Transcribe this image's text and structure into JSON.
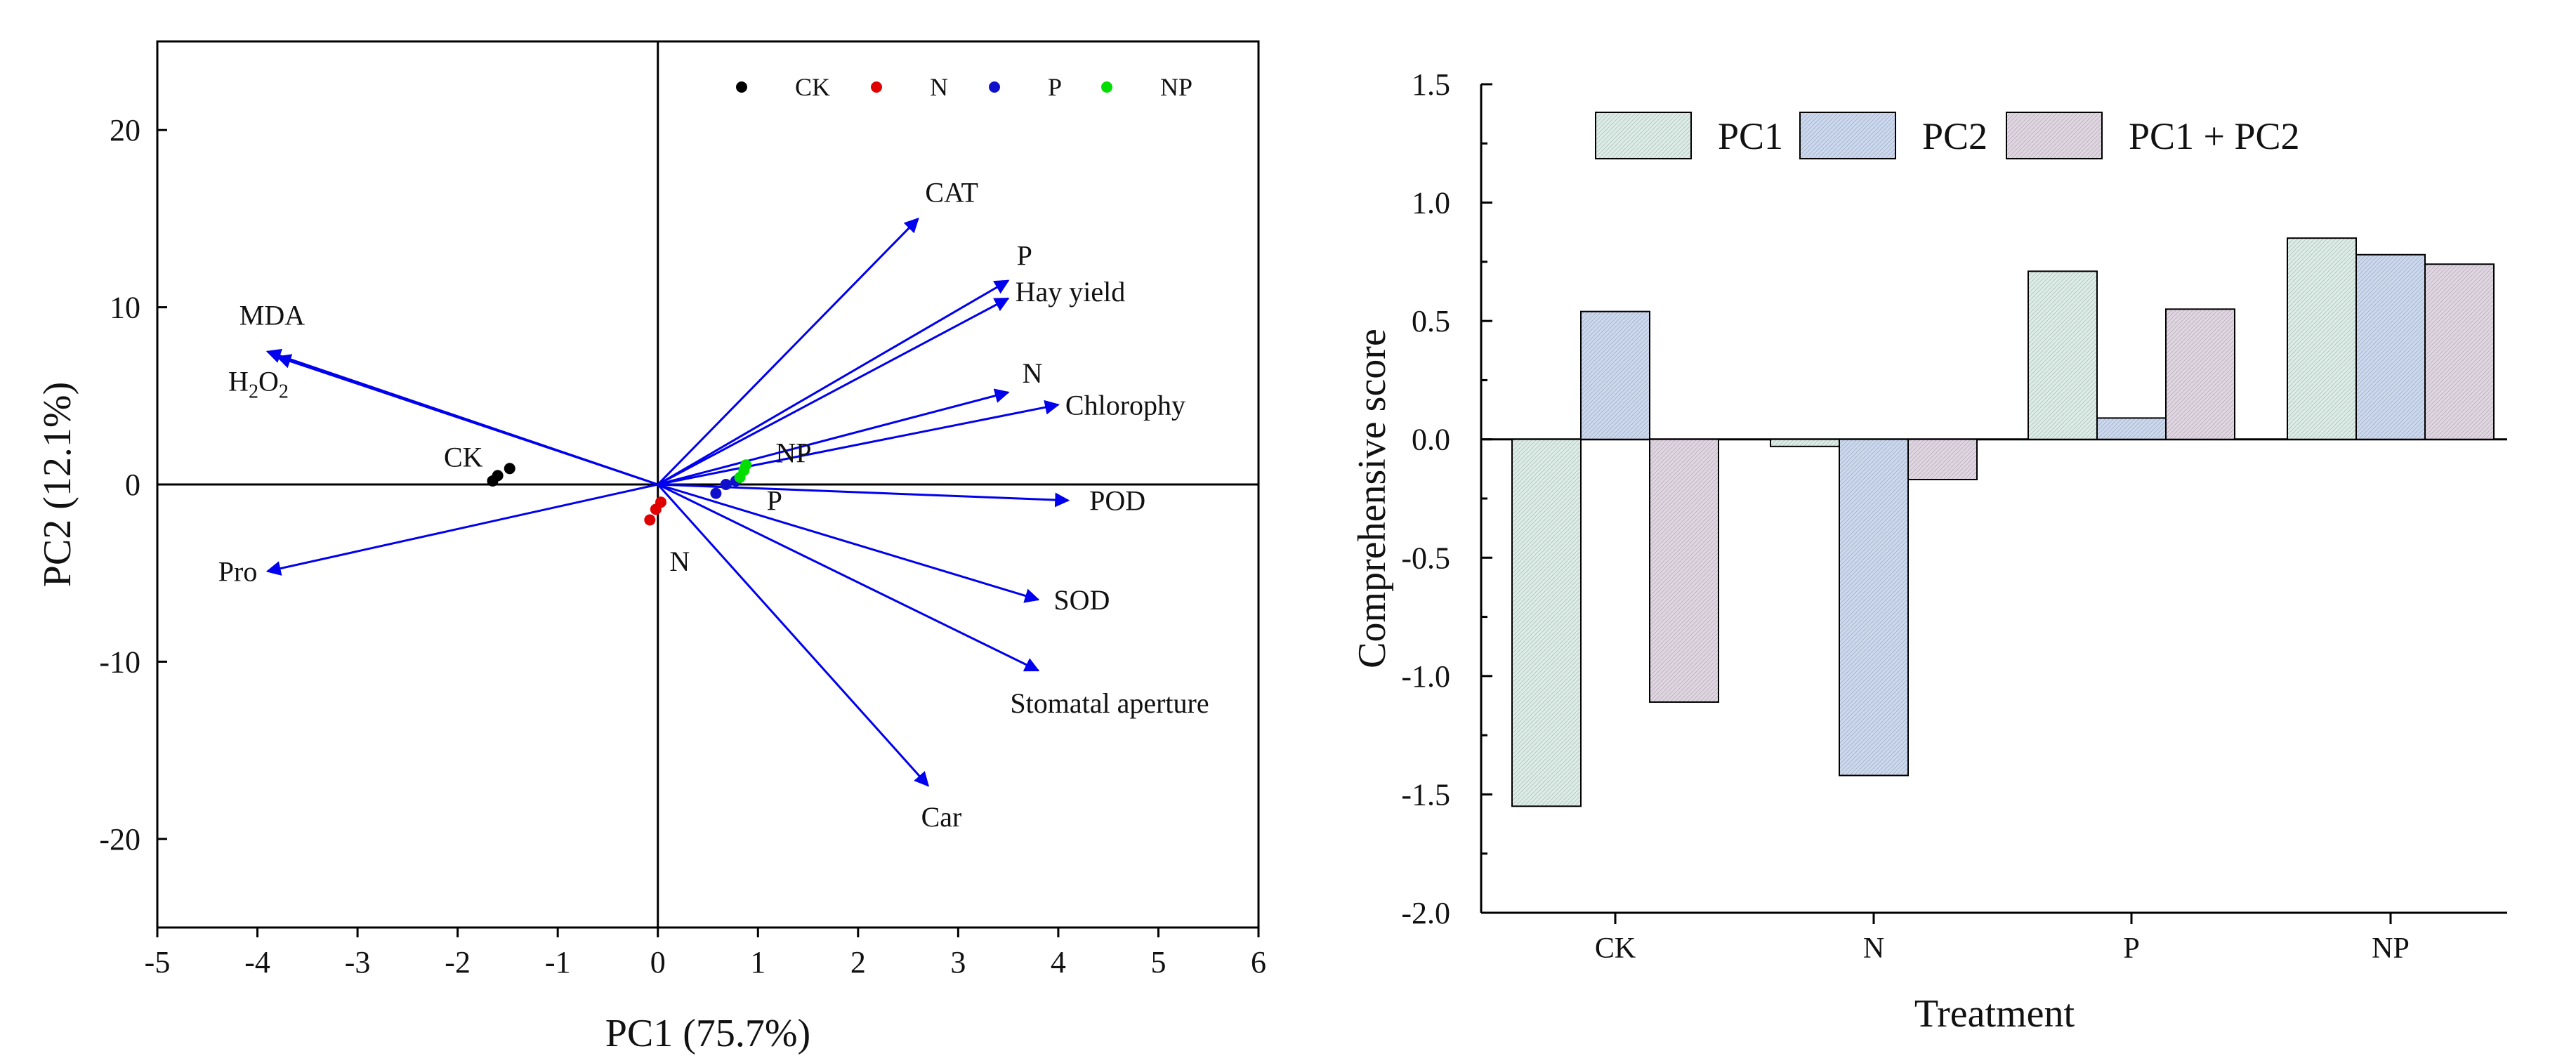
{
  "chart_data": [
    {
      "type": "scatter",
      "subtype": "pca-biplot",
      "title": "",
      "xlabel": "PC1 (75.7%)",
      "ylabel": "PC2 (12.1%)",
      "xlim": [
        -5,
        6
      ],
      "ylim": [
        -25,
        25
      ],
      "xticks": [
        "-5",
        "-4",
        "-3",
        "-2",
        "-1",
        "0",
        "1",
        "2",
        "3",
        "4",
        "5",
        "6"
      ],
      "yticks": [
        "20",
        "10",
        "0",
        "-10",
        "-20"
      ],
      "zero_lines": true,
      "grid": false,
      "legend_position": "top-right",
      "arrow_color": "#0000ee",
      "groups": [
        {
          "name": "CK",
          "color": "#000000",
          "label": "CK",
          "points": [
            [
              -1.65,
              0.2
            ],
            [
              -1.6,
              0.5
            ],
            [
              -1.48,
              0.9
            ]
          ]
        },
        {
          "name": "N",
          "color": "#e00000",
          "label": "N",
          "points": [
            [
              -0.08,
              -2.0
            ],
            [
              -0.02,
              -1.4
            ],
            [
              0.03,
              -1.0
            ]
          ]
        },
        {
          "name": "P",
          "color": "#1010cc",
          "label": "P",
          "points": [
            [
              0.58,
              -0.5
            ],
            [
              0.68,
              0.0
            ],
            [
              0.78,
              0.2
            ]
          ]
        },
        {
          "name": "NP",
          "color": "#00dd00",
          "label": "NP",
          "points": [
            [
              0.82,
              0.4
            ],
            [
              0.86,
              0.8
            ],
            [
              0.88,
              1.1
            ]
          ]
        }
      ],
      "loadings": [
        {
          "name": "CAT",
          "x": 2.6,
          "y": 15.0
        },
        {
          "name": "P",
          "x": 3.5,
          "y": 11.5
        },
        {
          "name": "Hay yield",
          "x": 3.5,
          "y": 10.5
        },
        {
          "name": "MDA",
          "x": -3.9,
          "y": 7.5
        },
        {
          "name": "H2O2",
          "x": -3.8,
          "y": 7.2
        },
        {
          "name": "N",
          "x": 3.5,
          "y": 5.2
        },
        {
          "name": "Chlorophy",
          "x": 4.0,
          "y": 4.5
        },
        {
          "name": "POD",
          "x": 4.1,
          "y": -0.9
        },
        {
          "name": "Pro",
          "x": -3.9,
          "y": -4.9
        },
        {
          "name": "SOD",
          "x": 3.8,
          "y": -6.5
        },
        {
          "name": "Stomatal aperture",
          "x": 3.8,
          "y": -10.5
        },
        {
          "name": "Car",
          "x": 2.7,
          "y": -17.0
        }
      ]
    },
    {
      "type": "bar",
      "title": "",
      "xlabel": "Treatment",
      "ylabel": "Comprehensive score",
      "ylim": [
        -2.0,
        1.5
      ],
      "yticks": [
        "1.5",
        "1.0",
        "0.5",
        "0.0",
        "-0.5",
        "-1.0",
        "-1.5",
        "-2.0"
      ],
      "categories": [
        "CK",
        "N",
        "P",
        "NP"
      ],
      "legend_position": "top-left",
      "series": [
        {
          "name": "PC1",
          "color": "#dcece6",
          "values": [
            -1.55,
            -0.03,
            0.71,
            0.85
          ]
        },
        {
          "name": "PC2",
          "color": "#cbd8ee",
          "values": [
            0.54,
            -1.42,
            0.09,
            0.78
          ]
        },
        {
          "name": "PC1 + PC2",
          "color": "#e0d6e2",
          "values": [
            -1.11,
            -0.17,
            0.55,
            0.74
          ]
        }
      ]
    }
  ]
}
